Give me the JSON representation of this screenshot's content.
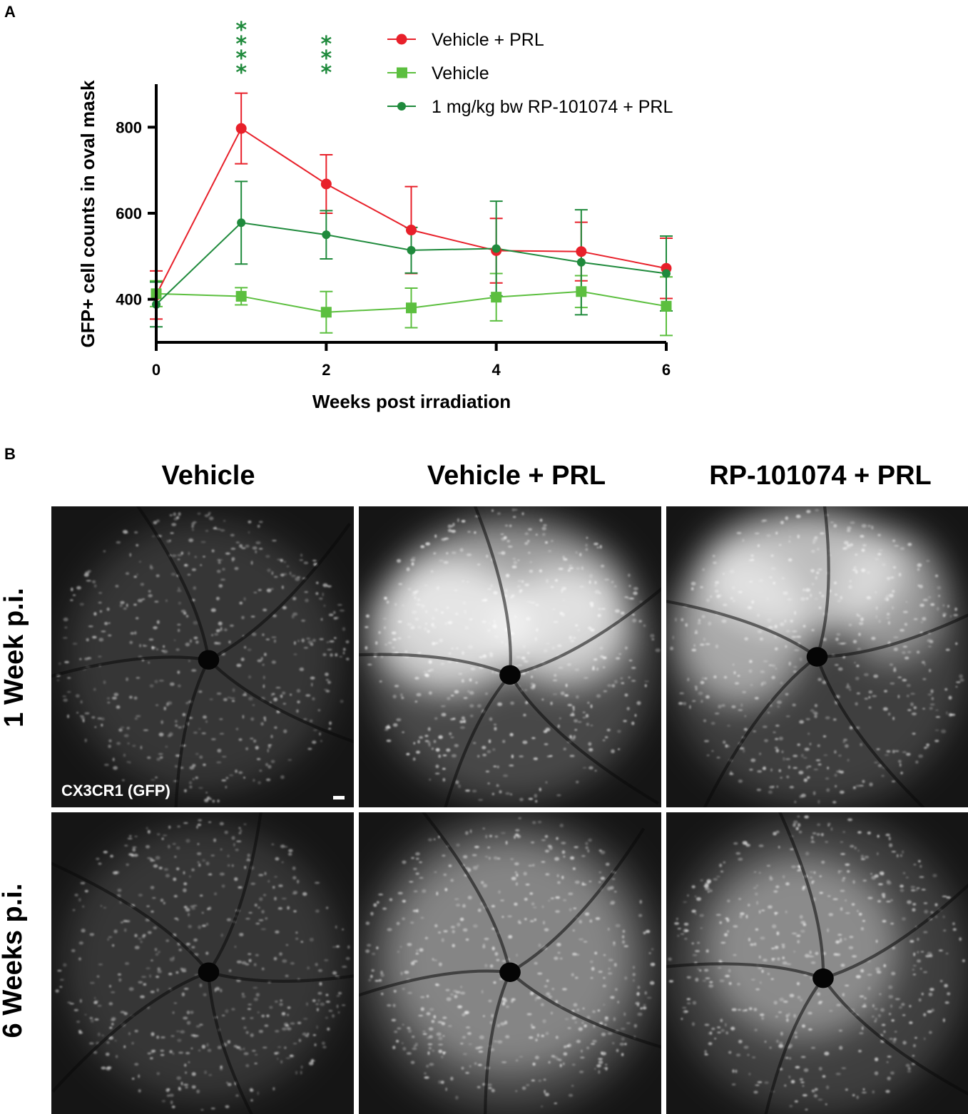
{
  "panel_a_label": "A",
  "panel_b_label": "B",
  "chart_data": {
    "type": "line",
    "x": [
      0,
      1,
      2,
      3,
      4,
      5,
      6
    ],
    "xlabel": "Weeks post irradiation",
    "ylabel": "GFP+ cell counts in oval mask",
    "xlim": [
      0,
      6
    ],
    "ylim": [
      300,
      900
    ],
    "xticks": [
      0,
      2,
      4,
      6
    ],
    "yticks": [
      400,
      600,
      800
    ],
    "grid": false,
    "legend_position": "top-right",
    "series": [
      {
        "name": "Vehicle + PRL",
        "color": "#e8202a",
        "marker": "circle",
        "values": [
          410,
          797,
          668,
          561,
          513,
          511,
          472
        ],
        "errors": [
          56,
          82,
          68,
          101,
          75,
          68,
          70
        ]
      },
      {
        "name": "Vehicle",
        "color": "#5cbf3f",
        "marker": "square",
        "values": [
          413,
          407,
          370,
          380,
          405,
          418,
          384
        ],
        "errors": [
          30,
          20,
          48,
          46,
          55,
          37,
          68
        ]
      },
      {
        "name": "1 mg/kg bw RP-101074 + PRL",
        "color": "#1f8a3c",
        "marker": "circle-small",
        "values": [
          388,
          578,
          550,
          514,
          518,
          486,
          460
        ],
        "errors": [
          52,
          96,
          56,
          53,
          110,
          122,
          87
        ]
      }
    ],
    "annotations": [
      {
        "x": 1,
        "text": "****",
        "color": "#1f8a3c"
      },
      {
        "x": 2,
        "text": "***",
        "color": "#1f8a3c"
      }
    ]
  },
  "panel_b": {
    "columns": [
      "Vehicle",
      "Vehicle + PRL",
      "RP-101074 + PRL"
    ],
    "rows": [
      "1 Week p.i.",
      "6 Weeks p.i."
    ],
    "stain_label": "CX3CR1 (GFP)"
  }
}
